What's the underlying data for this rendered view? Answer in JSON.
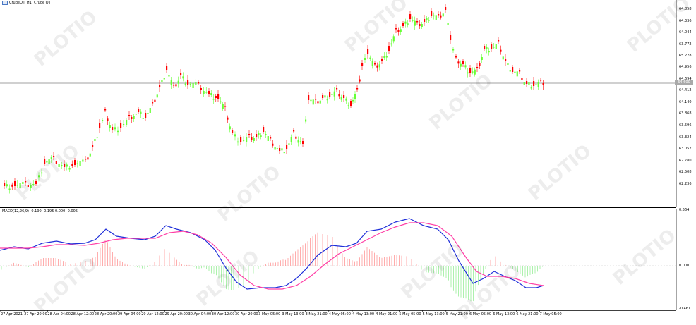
{
  "header": {
    "symbol_line": "CrudeOil, H1:  Crude Oil"
  },
  "macd": {
    "label": "MACD(12,26,9) -0.190 -0.195 0.000 -0.005"
  },
  "price_tag": "64.600",
  "price_axis": [
    "64.858",
    "64.336",
    "64.044",
    "63.772",
    "65.228",
    "64.956",
    "64.694",
    "64.412",
    "64.140",
    "63.868",
    "63.596",
    "63.324",
    "63.052",
    "62.780",
    "62.508",
    "62.236"
  ],
  "price_axis_display": [
    "64.858",
    "64.336",
    "64.044",
    "63.772",
    "65.228",
    "64.956",
    "64.694",
    "64.412",
    "64.140",
    "63.868",
    "63.596",
    "63.324",
    "63.052",
    "62.780",
    "62.508",
    "62.236"
  ],
  "macd_axis": [
    "0.564",
    "0.000",
    "-0.461"
  ],
  "time_axis": [
    "27 Apr 2021",
    "27 Apr 20:00",
    "28 Apr 04:00",
    "28 Apr 12:00",
    "28 Apr 20:00",
    "29 Apr 04:00",
    "29 Apr 12:00",
    "29 Apr 20:00",
    "30 Apr 04:00",
    "30 Apr 12:00",
    "30 Apr 20:00",
    "3 May 05:00",
    "3 May 13:00",
    "3 May 21:00",
    "4 May 05:00",
    "4 May 13:00",
    "4 May 21:00",
    "5 May 05:00",
    "5 May 13:00",
    "5 May 21:00",
    "6 May 05:00",
    "6 May 13:00",
    "6 May 21:00",
    "7 May 05:00"
  ],
  "watermark": "PLOTIO",
  "colors": {
    "up": "#ff0000",
    "down": "#66ff33",
    "macd": "#1f2fd9",
    "signal": "#ff3fa6",
    "grid": "#c0c0c0",
    "hist_up": "#ff9999",
    "hist_down": "#99ee99"
  }
}
